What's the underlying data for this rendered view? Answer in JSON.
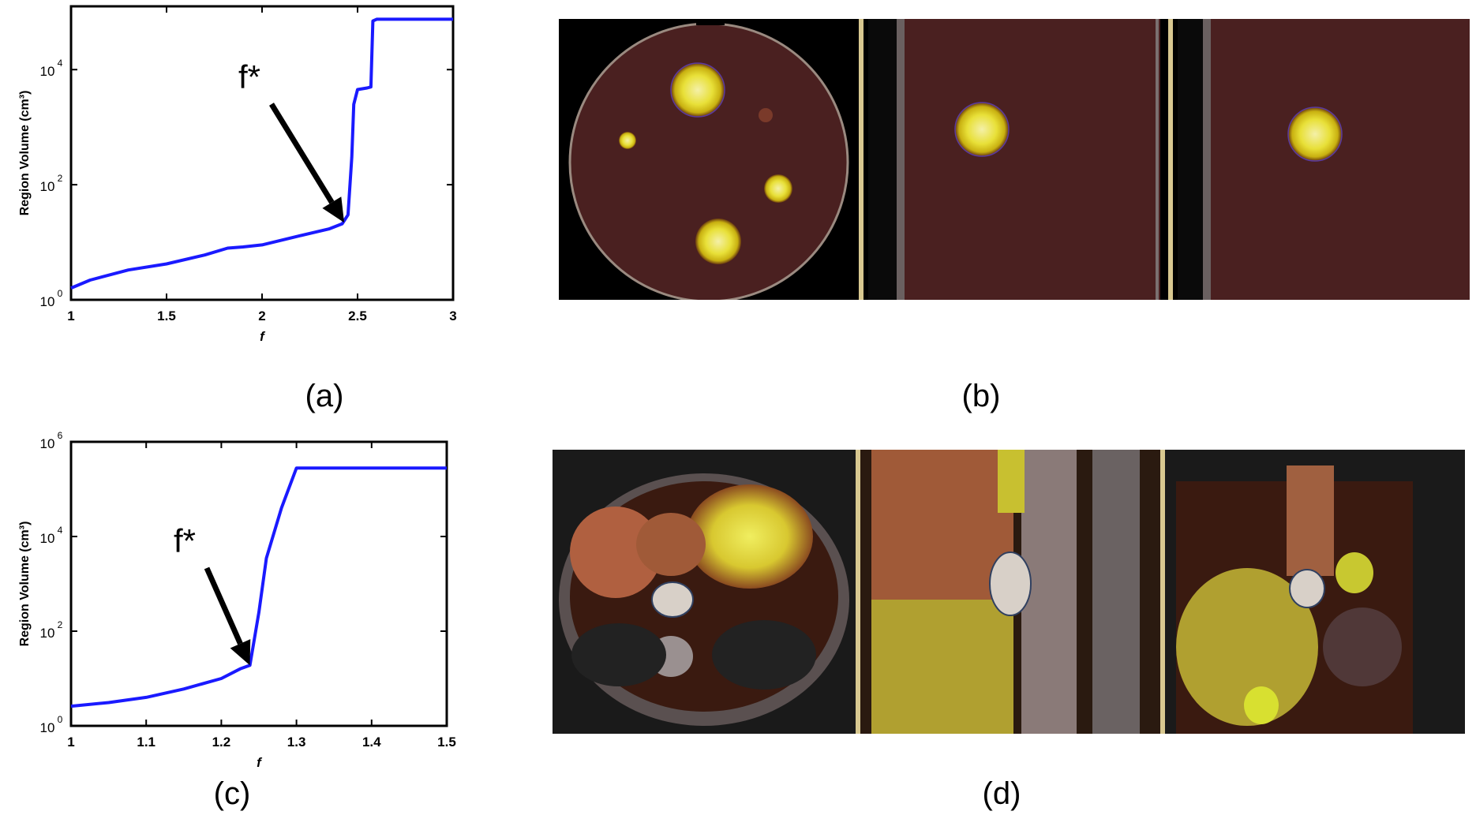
{
  "figure": {
    "captions": {
      "a": "(a)",
      "b": "(b)",
      "c": "(c)",
      "d": "(d)"
    },
    "annotation_label": "f*"
  },
  "chart_data": [
    {
      "id": "a",
      "type": "line",
      "xlabel": "f",
      "ylabel": "Region Volume (cm³)",
      "xlim": [
        1,
        3
      ],
      "xticks": [
        "1",
        "1.5",
        "2",
        "2.5",
        "3"
      ],
      "ylim_log10": [
        0,
        5.1
      ],
      "yticks": [
        {
          "base": "10",
          "exp": "0",
          "log": 0
        },
        {
          "base": "10",
          "exp": "2",
          "log": 2
        },
        {
          "base": "10",
          "exp": "4",
          "log": 4
        }
      ],
      "yscale": "log",
      "grid": false,
      "annotation": {
        "text": "f*",
        "x": 2.43,
        "y": 22
      },
      "series": [
        {
          "color": "#1a1aff",
          "x": [
            1.0,
            1.1,
            1.3,
            1.5,
            1.7,
            1.82,
            1.9,
            2.0,
            2.2,
            2.35,
            2.42,
            2.45,
            2.47,
            2.48,
            2.5,
            2.55,
            2.57,
            2.58,
            2.6,
            3.0
          ],
          "y": [
            1.6,
            2.2,
            3.3,
            4.2,
            6.0,
            7.9,
            8.3,
            9.0,
            13,
            17,
            21,
            30,
            300,
            2500,
            4500,
            4800,
            5000,
            70000,
            75000,
            75000
          ]
        }
      ]
    },
    {
      "id": "c",
      "type": "line",
      "xlabel": "f",
      "ylabel": "Region Volume (cm³)",
      "xlim": [
        1,
        1.5
      ],
      "xticks": [
        "1",
        "1.1",
        "1.2",
        "1.3",
        "1.4",
        "1.5"
      ],
      "ylim_log10": [
        0,
        6
      ],
      "yticks": [
        {
          "base": "10",
          "exp": "0",
          "log": 0
        },
        {
          "base": "10",
          "exp": "2",
          "log": 2
        },
        {
          "base": "10",
          "exp": "4",
          "log": 4
        },
        {
          "base": "10",
          "exp": "6",
          "log": 6
        }
      ],
      "yscale": "log",
      "grid": false,
      "annotation": {
        "text": "f*",
        "x": 1.238,
        "y": 19
      },
      "series": [
        {
          "color": "#1a1aff",
          "x": [
            1.0,
            1.05,
            1.1,
            1.15,
            1.2,
            1.225,
            1.238,
            1.25,
            1.26,
            1.28,
            1.3,
            1.5
          ],
          "y": [
            2.6,
            3.1,
            4.0,
            6.0,
            10,
            16,
            19,
            250,
            3500,
            40000,
            280000,
            280000
          ]
        }
      ]
    }
  ],
  "images": {
    "b": {
      "views": [
        "phantom-axial-view",
        "phantom-sagittal-view",
        "phantom-coronal-view"
      ]
    },
    "d": {
      "views": [
        "patient-axial-view",
        "patient-sagittal-view",
        "patient-coronal-view"
      ]
    }
  }
}
